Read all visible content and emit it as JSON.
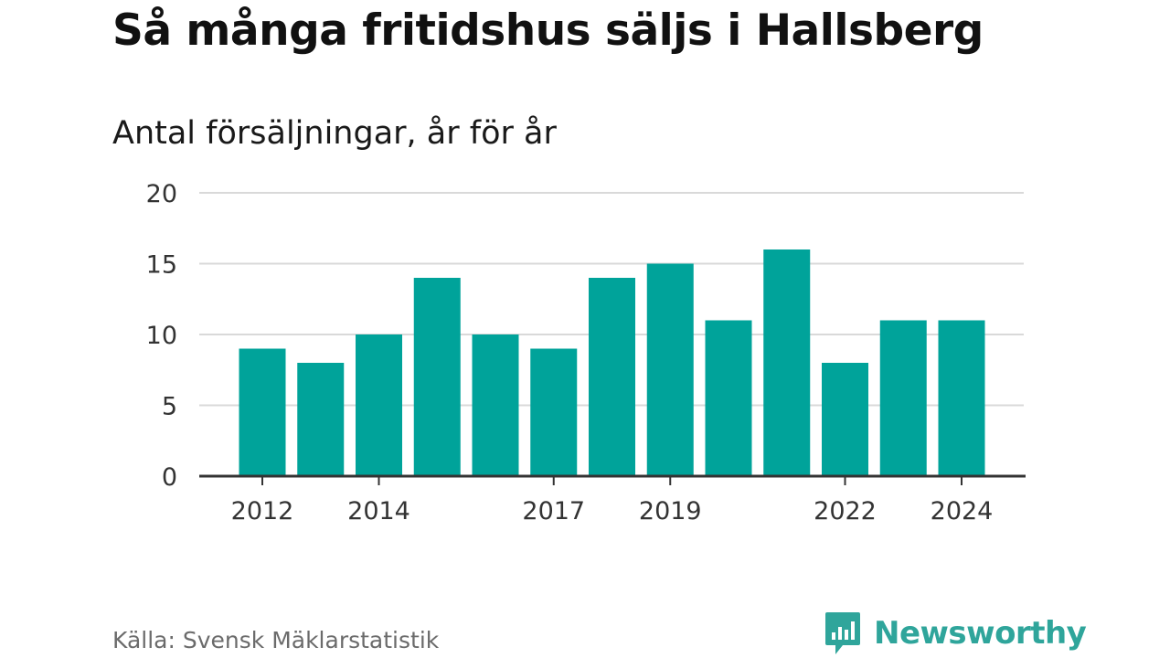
{
  "title": "Så många fritidshus säljs i Hallsberg",
  "subtitle": "Antal försäljningar, år för år",
  "source": "Källa: Svensk Mäklarstatistik",
  "brand": {
    "name": "Newsworthy",
    "icon": "bar-chart-speech-bubble-icon",
    "color": "#2fa59b"
  },
  "chart_data": {
    "type": "bar",
    "categories": [
      "2012",
      "2013",
      "2014",
      "2015",
      "2016",
      "2017",
      "2018",
      "2019",
      "2020",
      "2021",
      "2022",
      "2023",
      "2024"
    ],
    "values": [
      9,
      8,
      10,
      14,
      10,
      9,
      14,
      15,
      11,
      16,
      8,
      11,
      11
    ],
    "x_tick_labels": [
      "2012",
      "2014",
      "2017",
      "2019",
      "2022",
      "2024"
    ],
    "y_ticks": [
      0,
      5,
      10,
      15,
      20
    ],
    "ylim": [
      0,
      20
    ],
    "xlabel": "",
    "ylabel": "",
    "grid": true,
    "bar_color": "#00a39a",
    "grid_color": "#d9d9d9",
    "axis_color": "#333333"
  }
}
